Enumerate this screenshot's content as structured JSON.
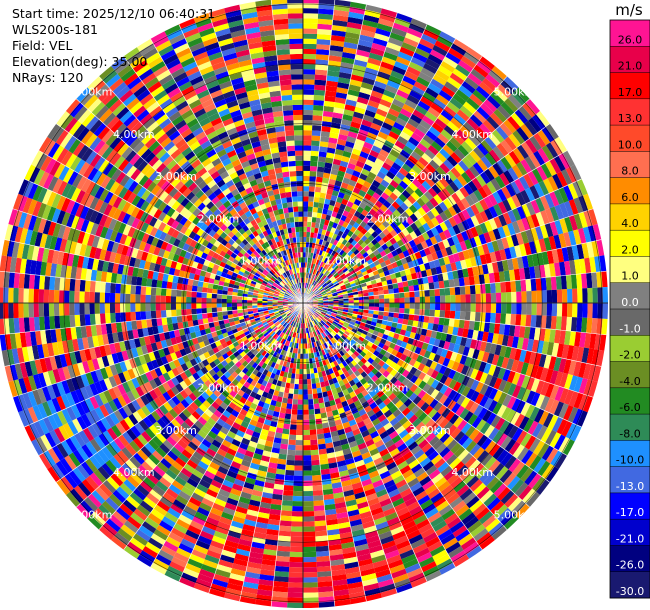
{
  "info": {
    "start_time": "Start time: 2025/12/10 06:40:31",
    "instrument": "WLS200s-181",
    "field": "Field: VEL",
    "elevation": "Elevation(deg): 35.00",
    "nrays": "NRays: 120"
  },
  "chart_data": {
    "type": "heatmap",
    "subtype": "polar-ppi",
    "field": "VEL",
    "n_rays": 120,
    "range_rings_km": [
      1.0,
      2.0,
      3.0,
      4.0,
      5.0
    ],
    "ring_labels": [
      "1.00km",
      "2.00km",
      "3.00km",
      "4.00km",
      "5.00km"
    ],
    "max_range_km": 5.1,
    "colorbar": {
      "unit": "m/s",
      "tick_labels": [
        "26.0",
        "21.0",
        "17.0",
        "13.0",
        "10.0",
        "8.0",
        "6.0",
        "4.0",
        "2.0",
        "1.0",
        "0.0",
        "-1.0",
        "-2.0",
        "-4.0",
        "-6.0",
        "-8.0",
        "-10.0",
        "-13.0",
        "-17.0",
        "-21.0",
        "-26.0",
        "-30.0"
      ],
      "colors": [
        "#ff1493",
        "#e8004a",
        "#ff0000",
        "#ff3232",
        "#ff4a2a",
        "#ff6f50",
        "#ff8c00",
        "#ffd200",
        "#ffff00",
        "#ffff80",
        "#808080",
        "#696969",
        "#9acd32",
        "#6b8e23",
        "#228b22",
        "#2e8b57",
        "#1e90ff",
        "#4169e1",
        "#0000ff",
        "#0000cd",
        "#000080",
        "#191970"
      ]
    }
  }
}
